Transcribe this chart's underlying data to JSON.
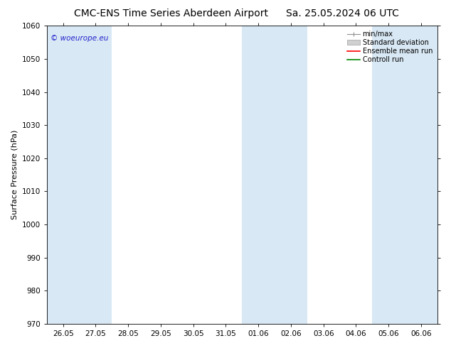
{
  "title": "CMC-ENS Time Series Aberdeen Airport",
  "title2": "Sa. 25.05.2024 06 UTC",
  "ylabel": "Surface Pressure (hPa)",
  "ylim": [
    970,
    1060
  ],
  "yticks": [
    970,
    980,
    990,
    1000,
    1010,
    1020,
    1030,
    1040,
    1050,
    1060
  ],
  "x_labels": [
    "26.05",
    "27.05",
    "28.05",
    "29.05",
    "30.05",
    "31.05",
    "01.06",
    "02.06",
    "03.06",
    "04.06",
    "05.06",
    "06.06"
  ],
  "shaded_indices": [
    0,
    1,
    6,
    7,
    10,
    11
  ],
  "background_color": "#ffffff",
  "plot_bg_color": "#ffffff",
  "shaded_color": "#d8e8f4",
  "legend_labels": [
    "min/max",
    "Standard deviation",
    "Ensemble mean run",
    "Controll run"
  ],
  "legend_colors_line": [
    "#909090",
    "#c0c0c0",
    "#ff0000",
    "#008800"
  ],
  "watermark": "© woeurope.eu",
  "watermark_color": "#2222cc",
  "title_fontsize": 10,
  "tick_fontsize": 7.5,
  "ylabel_fontsize": 8
}
